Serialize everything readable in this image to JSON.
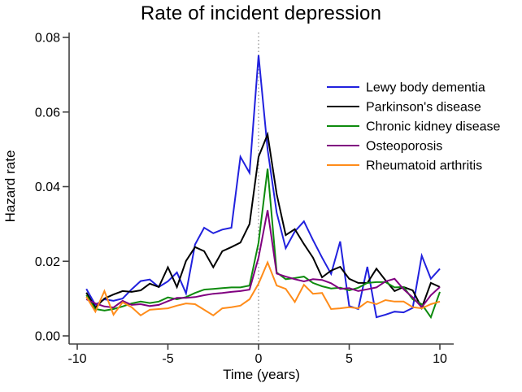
{
  "figure": {
    "title": "Rate of incident depression",
    "background": "#ffffff",
    "axis_color": "#404040",
    "reference_line_color": "#909090"
  },
  "chart_data": {
    "type": "line",
    "title": "Rate of incident depression",
    "xlabel": "Time (years)",
    "ylabel": "Hazard rate",
    "xlim": [
      -10.5,
      10.8
    ],
    "ylim": [
      0,
      0.08
    ],
    "x_ticks": [
      -10,
      -5,
      0,
      5,
      10
    ],
    "x_tick_labels": [
      "-10",
      "-5",
      "0",
      "5",
      "10"
    ],
    "y_ticks": [
      0,
      0.02,
      0.04,
      0.06,
      0.08
    ],
    "y_tick_labels": [
      "0.00",
      "0.02",
      "0.04",
      "0.06",
      "0.08"
    ],
    "grid": false,
    "reference_line_x": 0,
    "reference_line_style": "dotted",
    "legend_position": "upper-right-inside",
    "sampling_interval_years": 0.5,
    "x": [
      -9.5,
      -9,
      -8.5,
      -8,
      -7.5,
      -7,
      -6.5,
      -6,
      -5.5,
      -5,
      -4.5,
      -4,
      -3.5,
      -3,
      -2.5,
      -2,
      -1.5,
      -1,
      -0.5,
      0,
      0.5,
      1,
      1.5,
      2,
      2.5,
      3,
      3.5,
      4,
      4.5,
      5,
      5.5,
      6,
      6.5,
      7,
      7.5,
      8,
      8.5,
      9,
      9.5,
      10
    ],
    "series": [
      {
        "name": "Lewy body dementia",
        "color": "#2121de",
        "values": [
          0.0126,
          0.0083,
          0.0098,
          0.0094,
          0.01,
          0.0125,
          0.0147,
          0.0151,
          0.0131,
          0.0146,
          0.017,
          0.0114,
          0.0245,
          0.029,
          0.0275,
          0.0285,
          0.029,
          0.048,
          0.0437,
          0.0752,
          0.05,
          0.033,
          0.0235,
          0.028,
          0.0307,
          0.0257,
          0.021,
          0.0166,
          0.0253,
          0.008,
          0.0072,
          0.0185,
          0.005,
          0.0057,
          0.0065,
          0.0063,
          0.0075,
          0.0215,
          0.0153,
          0.018
        ]
      },
      {
        "name": "Parkinson's disease",
        "color": "#000000",
        "values": [
          0.0116,
          0.0076,
          0.01,
          0.0111,
          0.012,
          0.0118,
          0.0122,
          0.014,
          0.0131,
          0.0184,
          0.0131,
          0.0201,
          0.0238,
          0.0227,
          0.0184,
          0.0227,
          0.0238,
          0.025,
          0.03,
          0.048,
          0.054,
          0.038,
          0.027,
          0.0286,
          0.0246,
          0.021,
          0.0157,
          0.0175,
          0.0185,
          0.0153,
          0.0142,
          0.0142,
          0.018,
          0.0149,
          0.012,
          0.0131,
          0.0122,
          0.0075,
          0.0142,
          0.0131
        ]
      },
      {
        "name": "Chronic kidney disease",
        "color": "#0e8b0e",
        "values": [
          0.0109,
          0.0072,
          0.0068,
          0.0072,
          0.0079,
          0.0087,
          0.0092,
          0.0088,
          0.0092,
          0.0103,
          0.0098,
          0.0104,
          0.0115,
          0.0124,
          0.0126,
          0.0128,
          0.013,
          0.013,
          0.0135,
          0.025,
          0.0448,
          0.017,
          0.0152,
          0.0155,
          0.0159,
          0.0142,
          0.0133,
          0.0127,
          0.0129,
          0.0122,
          0.0129,
          0.0142,
          0.0144,
          0.0144,
          0.013,
          0.0131,
          0.0098,
          0.0085,
          0.005,
          0.0118
        ]
      },
      {
        "name": "Osteoporosis",
        "color": "#800080",
        "values": [
          0.0098,
          0.0087,
          0.0079,
          0.0076,
          0.0094,
          0.0083,
          0.0085,
          0.008,
          0.0083,
          0.0093,
          0.0102,
          0.0102,
          0.0104,
          0.0109,
          0.0113,
          0.0115,
          0.0118,
          0.012,
          0.0124,
          0.021,
          0.0337,
          0.0167,
          0.0159,
          0.0152,
          0.0146,
          0.0152,
          0.015,
          0.0141,
          0.0126,
          0.0128,
          0.012,
          0.0125,
          0.013,
          0.0146,
          0.0153,
          0.0125,
          0.0103,
          0.0077,
          0.0109,
          0.0131
        ]
      },
      {
        "name": "Rheumatoid arthritis",
        "color": "#ff8c1a",
        "values": [
          0.0105,
          0.0065,
          0.012,
          0.0057,
          0.009,
          0.0077,
          0.0055,
          0.007,
          0.0072,
          0.0074,
          0.0081,
          0.0087,
          0.0085,
          0.007,
          0.0055,
          0.0074,
          0.0077,
          0.0081,
          0.0098,
          0.014,
          0.0197,
          0.0135,
          0.0126,
          0.0091,
          0.0137,
          0.0113,
          0.0115,
          0.0072,
          0.0074,
          0.0077,
          0.0074,
          0.0092,
          0.0085,
          0.0096,
          0.0092,
          0.0092,
          0.0077,
          0.0074,
          0.0085,
          0.0092
        ]
      }
    ]
  }
}
